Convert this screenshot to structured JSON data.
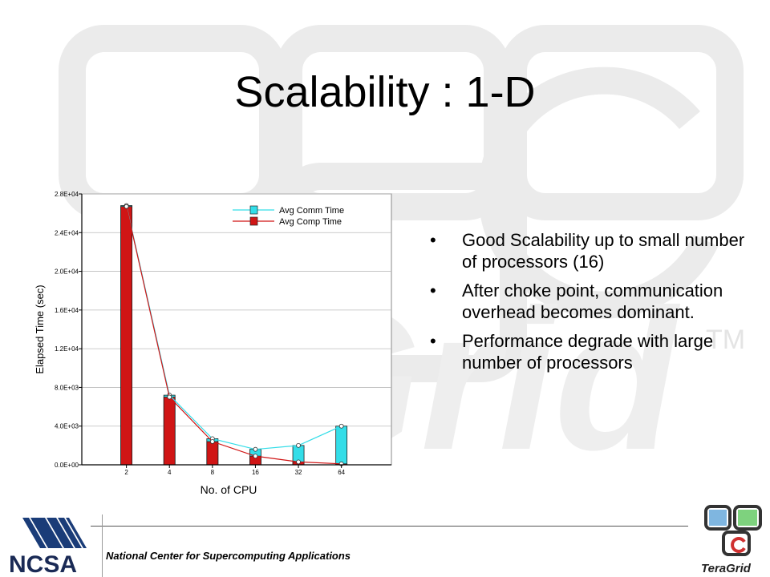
{
  "slide": {
    "title": "Scalability : 1-D",
    "bullets": [
      "Good Scalability up to small number of processors (16)",
      "After choke point, communication overhead becomes dominant.",
      "Performance degrade with large number of processors"
    ],
    "bullet_glyph": "•",
    "footer": "National Center for Supercomputing Applications",
    "logos": {
      "left": "NCSA",
      "right": "TeraGrid"
    },
    "watermark_tm": "TM"
  },
  "colors": {
    "comm": "#33dde8",
    "comp": "#d01515",
    "watermark": "#eaeaea"
  },
  "chart_data": {
    "type": "bar",
    "xlabel": "No. of CPU",
    "ylabel": "Elapsed Time (sec)",
    "categories": [
      "2",
      "4",
      "8",
      "16",
      "32",
      "64"
    ],
    "ylim": [
      0,
      28000
    ],
    "yticks": [
      "0.0E+00",
      "4.0E+03",
      "8.0E+03",
      "1.2E+04",
      "1.6E+04",
      "2.0E+04",
      "2.4E+04",
      "2.8E+04"
    ],
    "ytick_values": [
      0,
      4000,
      8000,
      12000,
      16000,
      20000,
      24000,
      28000
    ],
    "legend_placement": "top-right",
    "series": [
      {
        "name": "Avg Comm Time",
        "values": [
          26800,
          7200,
          2700,
          1600,
          2000,
          4000
        ]
      },
      {
        "name": "Avg Comp Time",
        "values": [
          26700,
          7000,
          2400,
          900,
          300,
          100
        ]
      }
    ]
  }
}
